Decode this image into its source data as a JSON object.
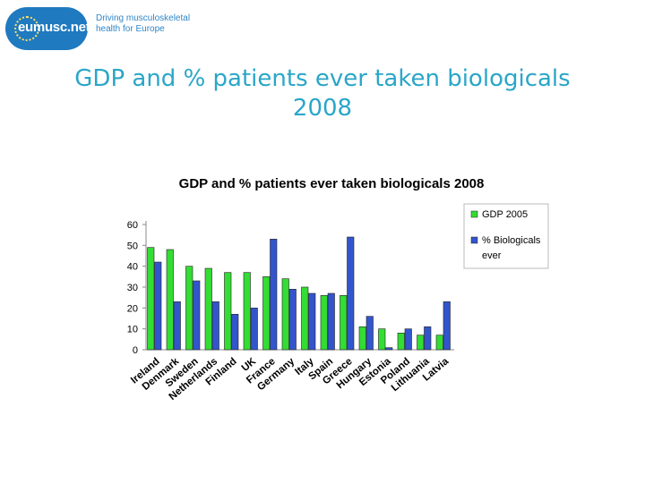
{
  "header": {
    "logo_text": "eumusc.net",
    "tagline_line1": "Driving musculoskeletal",
    "tagline_line2": "health for Europe"
  },
  "slide": {
    "title_line1": "GDP and % patients ever taken biologicals",
    "title_line2": "2008"
  },
  "colors": {
    "gdp": "#33dd33",
    "bio": "#3355cc",
    "title": "#2aa6c8"
  },
  "chart_data": {
    "type": "bar",
    "title": "GDP and % patients ever taken biologicals 2008",
    "categories": [
      "Ireland",
      "Denmark",
      "Sweden",
      "Netherlands",
      "Finland",
      "UK",
      "France",
      "Germany",
      "Italy",
      "Spain",
      "Greece",
      "Hungary",
      "Estonia",
      "Poland",
      "Lithuania",
      "Latvia"
    ],
    "series": [
      {
        "name": "GDP 2005",
        "values": [
          49,
          48,
          40,
          39,
          37,
          37,
          35,
          34,
          30,
          26,
          26,
          11,
          10,
          8,
          7,
          7
        ]
      },
      {
        "name": "% Biologicals ever",
        "values": [
          42,
          23,
          33,
          23,
          17,
          20,
          53,
          29,
          27,
          27,
          54,
          16,
          1,
          10,
          11,
          23
        ]
      }
    ],
    "yticks": [
      0,
      10,
      20,
      30,
      40,
      50,
      60
    ],
    "ylim": [
      0,
      60
    ],
    "xlabel": "",
    "ylabel": "",
    "legend_position": "top-right"
  }
}
